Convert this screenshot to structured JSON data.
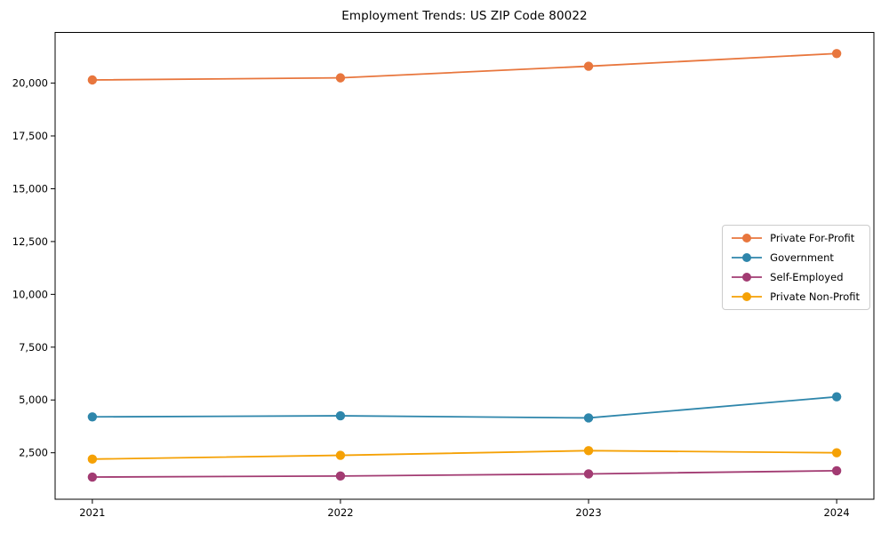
{
  "chart_data": {
    "type": "line",
    "title": "Employment Trends: US ZIP Code 80022",
    "x": [
      2021,
      2022,
      2023,
      2024
    ],
    "xtick_labels": [
      "2021",
      "2022",
      "2023",
      "2024"
    ],
    "xlabel": "",
    "ylabel": "",
    "xlim": [
      2020.85,
      2024.15
    ],
    "ylim": [
      300,
      22400
    ],
    "ytick_values": [
      2500,
      5000,
      7500,
      10000,
      12500,
      15000,
      17500,
      20000
    ],
    "ytick_labels": [
      "2,500",
      "5,000",
      "7,500",
      "10,000",
      "12,500",
      "15,000",
      "17,500",
      "20,000"
    ],
    "grid": false,
    "marker": "o",
    "legend_position": "center right",
    "series": [
      {
        "name": "Private For-Profit",
        "color": "#E8763D",
        "values": [
          20150,
          20250,
          20800,
          21400
        ]
      },
      {
        "name": "Government",
        "color": "#2E86AB",
        "values": [
          4200,
          4250,
          4150,
          5150
        ]
      },
      {
        "name": "Self-Employed",
        "color": "#A23B72",
        "values": [
          1350,
          1400,
          1500,
          1650
        ]
      },
      {
        "name": "Private Non-Profit",
        "color": "#F5A105",
        "values": [
          2200,
          2380,
          2600,
          2500
        ]
      }
    ]
  }
}
